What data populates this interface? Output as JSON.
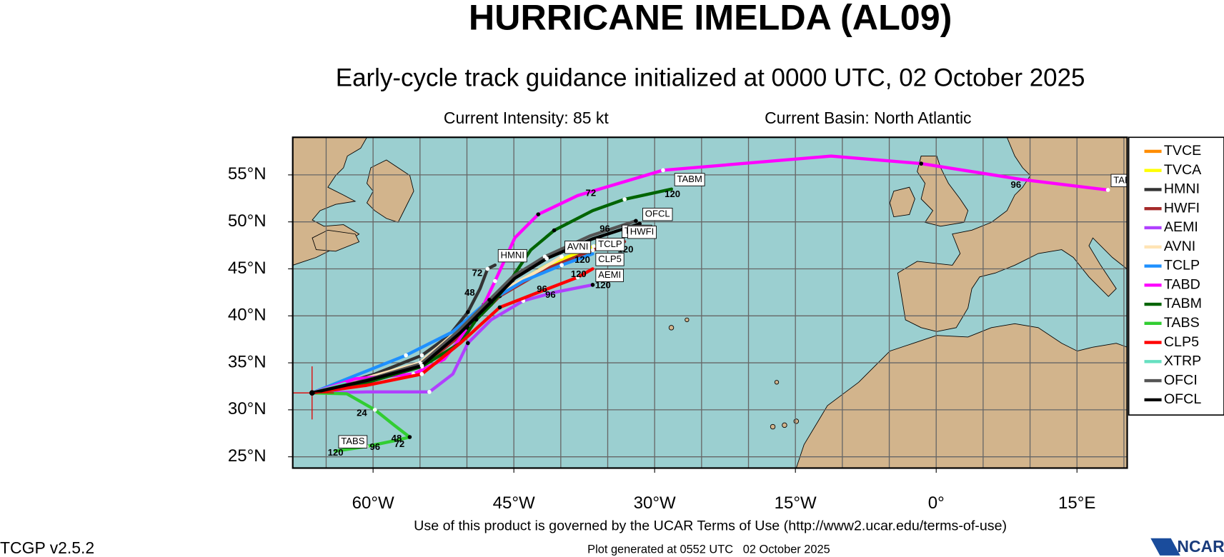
{
  "header": {
    "title": "HURRICANE IMELDA (AL09)",
    "subtitle": "Early-cycle track guidance initialized at 0000 UTC, 02 October 2025",
    "intensity": "Current Intensity: 85 kt",
    "basin": "Current Basin: North Atlantic"
  },
  "footer": {
    "terms": "Use of this product is governed by the UCAR Terms of Use (http://www2.ucar.edu/terms-of-use)",
    "version": "TCGP v2.5.2",
    "generated": "Plot generated at 0552 UTC   02 October 2025",
    "logo": "NCAR"
  },
  "chart_data": {
    "type": "track-map",
    "lonlim": [
      -68.56,
      20.35
    ],
    "latlim": [
      23.8,
      59.0
    ],
    "lonticks": [
      {
        "value": -60,
        "label": "60°W"
      },
      {
        "value": -45,
        "label": "45°W"
      },
      {
        "value": -30,
        "label": "30°W"
      },
      {
        "value": -15,
        "label": "15°W"
      },
      {
        "value": 0,
        "label": "0°"
      },
      {
        "value": 15,
        "label": "15°E"
      }
    ],
    "latticks": [
      {
        "value": 25,
        "label": "25°N"
      },
      {
        "value": 30,
        "label": "30°N"
      },
      {
        "value": 35,
        "label": "35°N"
      },
      {
        "value": 40,
        "label": "40°N"
      },
      {
        "value": 45,
        "label": "45°N"
      },
      {
        "value": 50,
        "label": "50°N"
      },
      {
        "value": 55,
        "label": "55°N"
      }
    ],
    "lon_grid": [
      -65,
      -60,
      -55,
      -50,
      -45,
      -40,
      -35,
      -30,
      -25,
      -20,
      -15,
      -10,
      -5,
      0,
      5,
      10,
      15,
      20
    ],
    "lat_grid": [
      25,
      30,
      35,
      40,
      45,
      50,
      55
    ],
    "grid": true,
    "current_position": {
      "lon": -66.5,
      "lat": 31.8
    },
    "series": [
      {
        "name": "TVCE",
        "color": "#ff8c00",
        "lon": [
          -66.5,
          -60.7,
          -54.8,
          -50.7,
          -46.5,
          -41.5,
          -36.6,
          -34.0
        ],
        "lat": [
          31.8,
          33.0,
          34.8,
          38.3,
          42.3,
          45.2,
          47.2,
          47.8
        ]
      },
      {
        "name": "TVCA",
        "color": "#ffff00",
        "lon": [
          -66.5,
          -60.6,
          -54.7,
          -50.6,
          -46.4,
          -41.4,
          -36.5,
          -33.8
        ],
        "lat": [
          31.8,
          33.1,
          34.9,
          38.4,
          42.5,
          45.4,
          47.4,
          48.0
        ],
        "tag": true
      },
      {
        "name": "HMNI",
        "color": "#333333",
        "lon": [
          -66.5,
          -59.8,
          -54.8,
          -51.9,
          -49.9,
          -48.6,
          -47.8,
          -47.0
        ],
        "lat": [
          31.8,
          33.8,
          35.8,
          37.9,
          40.4,
          42.9,
          45.0,
          45.4
        ],
        "tag": true,
        "labels": [
          {
            "hour": 48,
            "lon": -49.7,
            "lat": 42.4
          },
          {
            "hour": 72,
            "lon": -48.9,
            "lat": 44.5
          }
        ]
      },
      {
        "name": "HWFI",
        "color": "#a52a2a",
        "lon": [
          -66.5,
          -60.7,
          -54.8,
          -50.7,
          -46.5,
          -41.5,
          -36.6,
          -33.2
        ],
        "lat": [
          31.8,
          32.9,
          34.6,
          37.9,
          42.1,
          45.0,
          47.0,
          47.9
        ],
        "tag": true,
        "labels": [
          {
            "hour": 120,
            "lon": -33.1,
            "lat": 47.0
          }
        ]
      },
      {
        "name": "AEMI",
        "color": "#b040ff",
        "lon": [
          -66.5,
          -60.7,
          -54.0,
          -51.5,
          -49.9,
          -47.4,
          -44.0,
          -40.7,
          -36.6
        ],
        "lat": [
          31.8,
          31.9,
          31.9,
          33.8,
          37.1,
          39.6,
          41.6,
          42.5,
          43.3
        ],
        "tag": true,
        "labels": [
          {
            "hour": 96,
            "lon": -41.1,
            "lat": 42.2
          },
          {
            "hour": 120,
            "lon": -35.5,
            "lat": 43.2
          }
        ]
      },
      {
        "name": "AVNI",
        "color": "#ffe4b5",
        "lon": [
          -66.5,
          -60.7,
          -55.0,
          -50.8,
          -46.8,
          -42.0,
          -39.9
        ],
        "lat": [
          31.8,
          33.4,
          35.0,
          38.6,
          42.4,
          45.0,
          46.3
        ],
        "tag": true
      },
      {
        "name": "TCLP",
        "color": "#1e90ff",
        "lon": [
          -66.5,
          -61.5,
          -56.5,
          -51.5,
          -48.2,
          -44.0,
          -39.9,
          -36.6
        ],
        "lat": [
          31.8,
          33.8,
          35.8,
          38.3,
          41.2,
          43.7,
          45.4,
          46.6
        ],
        "tag": true,
        "labels": [
          {
            "hour": 120,
            "lon": -37.7,
            "lat": 45.9
          }
        ]
      },
      {
        "name": "TABD",
        "color": "#ff00ff",
        "lon": [
          -66.5,
          -61.9,
          -55.7,
          -52.4,
          -49.9,
          -48.2,
          -47.0,
          -44.9,
          -42.4,
          -38.2,
          -29.1,
          -11.2,
          -1.6,
          9.2,
          18.3
        ],
        "lat": [
          31.8,
          33.3,
          33.8,
          35.4,
          38.7,
          41.2,
          43.7,
          48.3,
          50.8,
          52.8,
          55.5,
          57.0,
          56.2,
          54.5,
          53.4
        ],
        "tag": true,
        "labels": [
          {
            "hour": 72,
            "lon": -36.8,
            "lat": 53.0
          },
          {
            "hour": 96,
            "lon": 8.5,
            "lat": 53.9
          }
        ]
      },
      {
        "name": "TABM",
        "color": "#006400",
        "lon": [
          -66.5,
          -60.7,
          -54.8,
          -50.7,
          -49.0,
          -47.4,
          -45.7,
          -43.2,
          -40.7,
          -36.6,
          -33.2,
          -28.2
        ],
        "lat": [
          31.8,
          32.9,
          34.6,
          37.1,
          39.6,
          41.2,
          43.3,
          47.0,
          49.1,
          51.2,
          52.4,
          53.5
        ],
        "tag": true,
        "labels": [
          {
            "hour": 120,
            "lon": -28.1,
            "lat": 52.9
          }
        ]
      },
      {
        "name": "TABS",
        "color": "#32cd32",
        "lon": [
          -66.5,
          -62.8,
          -59.8,
          -57.8,
          -56.1,
          -57.8,
          -60.7,
          -64.0
        ],
        "lat": [
          31.8,
          31.7,
          30.0,
          28.4,
          27.1,
          26.7,
          26.1,
          25.6
        ],
        "tag": true,
        "labels": [
          {
            "hour": 24,
            "lon": -61.2,
            "lat": 29.6
          },
          {
            "hour": 48,
            "lon": -57.5,
            "lat": 26.9
          },
          {
            "hour": 72,
            "lon": -57.2,
            "lat": 26.3
          },
          {
            "hour": 96,
            "lon": -59.8,
            "lat": 26.0
          },
          {
            "hour": 120,
            "lon": -64.0,
            "lat": 25.4
          }
        ]
      },
      {
        "name": "CLP5",
        "color": "#ff0000",
        "lon": [
          -66.5,
          -60.7,
          -54.8,
          -50.7,
          -46.5,
          -42.4,
          -38.2,
          -36.6
        ],
        "lat": [
          31.8,
          32.6,
          33.8,
          37.1,
          40.9,
          42.5,
          44.1,
          45.0
        ],
        "tag": true,
        "labels": [
          {
            "hour": 96,
            "lon": -42.0,
            "lat": 42.8
          },
          {
            "hour": 120,
            "lon": -38.1,
            "lat": 44.4
          }
        ]
      },
      {
        "name": "XTRP",
        "color": "#66e0c0",
        "lon": [
          -66.5,
          -63.0
        ],
        "lat": [
          31.8,
          32.8
        ]
      },
      {
        "name": "OFCI",
        "color": "#555555",
        "lon": [
          -66.5,
          -60.6,
          -54.9,
          -50.9,
          -47.6,
          -45.1,
          -41.7,
          -36.9,
          -32.0
        ],
        "lat": [
          31.8,
          33.2,
          34.9,
          38.4,
          41.7,
          44.2,
          46.3,
          48.5,
          50.1
        ]
      },
      {
        "name": "OFCL",
        "color": "#000000",
        "lon": [
          -66.5,
          -60.7,
          -54.8,
          -50.7,
          -47.4,
          -44.9,
          -41.5,
          -36.6,
          -31.6
        ],
        "lat": [
          31.8,
          33.1,
          34.7,
          38.2,
          41.5,
          44.0,
          46.1,
          48.2,
          49.8
        ],
        "tag": true,
        "labels": [
          {
            "hour": 96,
            "lon": -35.3,
            "lat": 49.2
          },
          {
            "hour": 120,
            "lon": -29.1,
            "lat": 50.9
          }
        ]
      }
    ]
  }
}
